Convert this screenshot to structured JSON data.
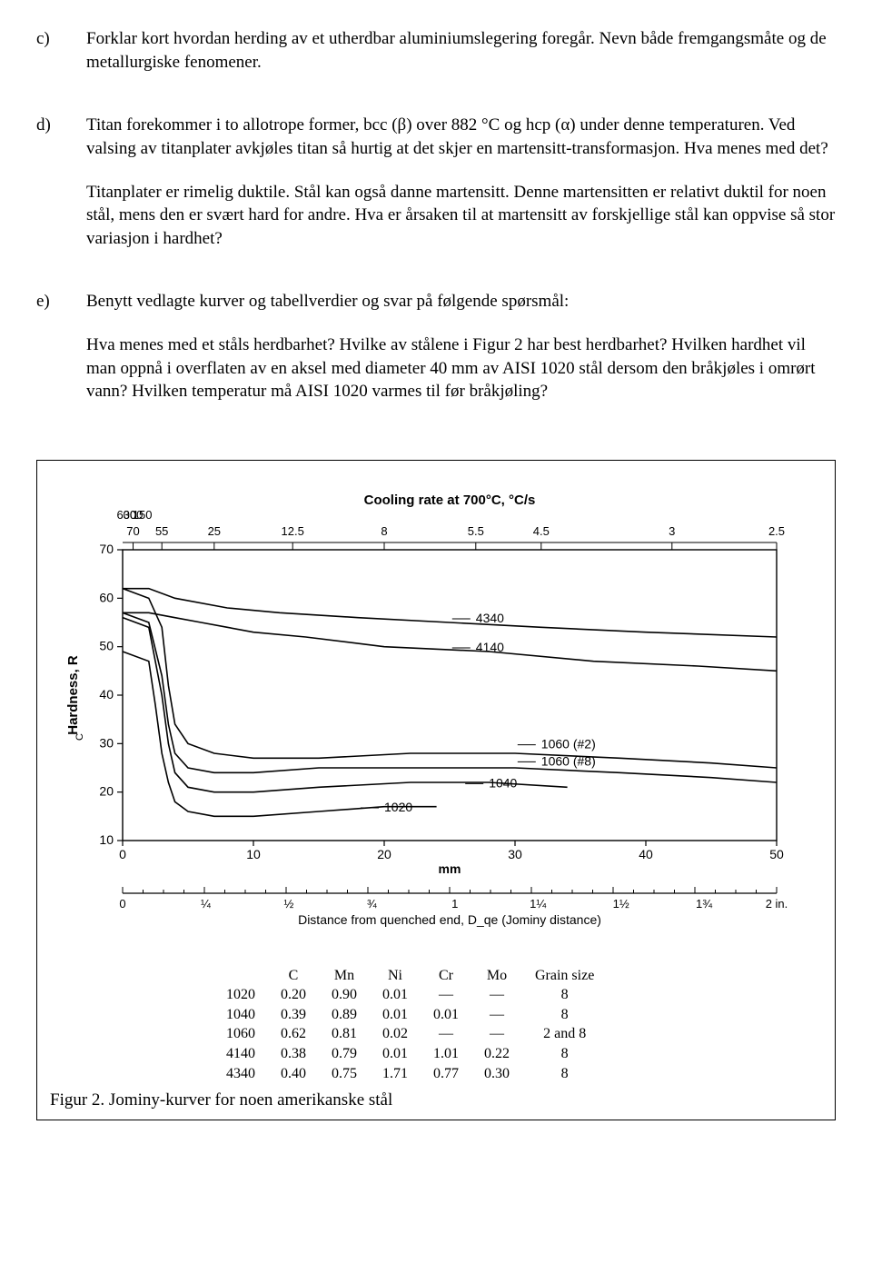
{
  "items": {
    "c": {
      "marker": "c)",
      "text": "Forklar kort hvordan herding av et utherdbar aluminiumslegering foregår. Nevn både fremgangsmåte og de metallurgiske fenomener."
    },
    "d": {
      "marker": "d)",
      "p1": "Titan forekommer i to allotrope former, bcc (β) over 882 °C og hcp (α) under denne temperaturen. Ved valsing av titanplater avkjøles titan så hurtig at det skjer en martensitt-transformasjon. Hva menes med det?",
      "p2": "Titanplater er rimelig duktile. Stål kan også danne martensitt. Denne martensitten er relativt duktil for noen stål, mens den er svært hard for andre. Hva er årsaken til at martensitt av forskjellige stål kan oppvise så stor variasjon i hardhet?"
    },
    "e": {
      "marker": "e)",
      "p1": "Benytt vedlagte kurver og tabellverdier og svar på følgende spørsmål:",
      "p2": "Hva menes med et ståls herdbarhet? Hvilke av stålene i Figur 2 har best herdbarhet? Hvilken hardhet vil man oppnå i overflaten av en aksel med diameter 40 mm av AISI 1020 stål dersom den bråkjøles i omrørt vann? Hvilken temperatur må AISI 1020 varmes til før bråkjøling?"
    }
  },
  "figure": {
    "caption": "Figur 2. Jominy-kurver for noen amerikanske stål",
    "chart": {
      "type": "line",
      "title_top": "Cooling rate at 700°C, °C/s",
      "cooling_rate_labels": [
        "600",
        "300",
        "150",
        "70",
        "55",
        "25",
        "12.5",
        "8",
        "5.5",
        "4.5",
        "3",
        "2.5"
      ],
      "cooling_rate_x": [
        0.3,
        0.8,
        1.5,
        0.8,
        3.0,
        7.0,
        13.0,
        20.0,
        27.0,
        32.0,
        42.0,
        50.0
      ],
      "cooling_rate_row": [
        0,
        0,
        0,
        1,
        1,
        1,
        1,
        1,
        1,
        1,
        1,
        1
      ],
      "x_axis_mm": {
        "label": "mm",
        "min": 0,
        "max": 50,
        "ticks": [
          0,
          10,
          20,
          30,
          40,
          50
        ]
      },
      "y_axis": {
        "label": "Hardness, R_C",
        "min": 10,
        "max": 70,
        "ticks": [
          10,
          20,
          30,
          40,
          50,
          60,
          70
        ]
      },
      "second_x_axis": {
        "label": "Distance from quenched end, D_qe (Jominy distance)",
        "ticks": [
          {
            "v": 0,
            "t": "0"
          },
          {
            "v": 6.35,
            "t": "¼"
          },
          {
            "v": 12.7,
            "t": "½"
          },
          {
            "v": 19.05,
            "t": "¾"
          },
          {
            "v": 25.4,
            "t": "1"
          },
          {
            "v": 31.75,
            "t": "1¼"
          },
          {
            "v": 38.1,
            "t": "1½"
          },
          {
            "v": 44.45,
            "t": "1¾"
          },
          {
            "v": 50,
            "t": "2 in."
          }
        ]
      },
      "line_color": "#000000",
      "axis_color": "#000000",
      "background_color": "#ffffff",
      "line_width": 1.6,
      "series": [
        {
          "name": "4340",
          "data": [
            [
              0,
              62
            ],
            [
              2,
              62
            ],
            [
              4,
              60
            ],
            [
              8,
              58
            ],
            [
              12,
              57
            ],
            [
              18,
              56
            ],
            [
              25,
              55
            ],
            [
              32,
              54
            ],
            [
              40,
              53
            ],
            [
              50,
              52
            ]
          ]
        },
        {
          "name": "4140",
          "data": [
            [
              0,
              57
            ],
            [
              2,
              57
            ],
            [
              4,
              56
            ],
            [
              6,
              55
            ],
            [
              8,
              54
            ],
            [
              10,
              53
            ],
            [
              14,
              52
            ],
            [
              20,
              50
            ],
            [
              28,
              49
            ],
            [
              36,
              47
            ],
            [
              44,
              46
            ],
            [
              50,
              45
            ]
          ]
        },
        {
          "name": "1060#2",
          "data": [
            [
              0,
              62
            ],
            [
              2,
              60
            ],
            [
              3,
              54
            ],
            [
              3.5,
              42
            ],
            [
              4,
              34
            ],
            [
              5,
              30
            ],
            [
              7,
              28
            ],
            [
              10,
              27
            ],
            [
              15,
              27
            ],
            [
              22,
              28
            ],
            [
              30,
              28
            ],
            [
              38,
              27
            ],
            [
              45,
              26
            ],
            [
              50,
              25
            ]
          ]
        },
        {
          "name": "1060#8",
          "data": [
            [
              0,
              57
            ],
            [
              2,
              55
            ],
            [
              3,
              44
            ],
            [
              3.5,
              34
            ],
            [
              4,
              28
            ],
            [
              5,
              25
            ],
            [
              7,
              24
            ],
            [
              10,
              24
            ],
            [
              15,
              25
            ],
            [
              22,
              25
            ],
            [
              30,
              25
            ],
            [
              38,
              24
            ],
            [
              45,
              23
            ],
            [
              50,
              22
            ]
          ]
        },
        {
          "name": "1040",
          "data": [
            [
              0,
              56
            ],
            [
              2,
              54
            ],
            [
              3,
              40
            ],
            [
              3.5,
              30
            ],
            [
              4,
              24
            ],
            [
              5,
              21
            ],
            [
              7,
              20
            ],
            [
              10,
              20
            ],
            [
              15,
              21
            ],
            [
              22,
              22
            ],
            [
              28,
              22
            ],
            [
              34,
              21
            ]
          ]
        },
        {
          "name": "1020",
          "data": [
            [
              0,
              49
            ],
            [
              2,
              47
            ],
            [
              2.5,
              38
            ],
            [
              3,
              28
            ],
            [
              3.5,
              22
            ],
            [
              4,
              18
            ],
            [
              5,
              16
            ],
            [
              7,
              15
            ],
            [
              10,
              15
            ],
            [
              15,
              16
            ],
            [
              20,
              17
            ],
            [
              24,
              17
            ]
          ]
        }
      ],
      "curve_labels": [
        {
          "text": "4340",
          "x": 27,
          "y": 55
        },
        {
          "text": "4140",
          "x": 27,
          "y": 49
        },
        {
          "text": "1060 (#2)",
          "x": 32,
          "y": 29
        },
        {
          "text": "1060 (#8)",
          "x": 32,
          "y": 25.5
        },
        {
          "text": "1040",
          "x": 28,
          "y": 21
        },
        {
          "text": "1020",
          "x": 20,
          "y": 16
        }
      ]
    },
    "table": {
      "columns": [
        "",
        "C",
        "Mn",
        "Ni",
        "Cr",
        "Mo",
        "Grain size"
      ],
      "rows": [
        [
          "1020",
          "0.20",
          "0.90",
          "0.01",
          "—",
          "—",
          "8"
        ],
        [
          "1040",
          "0.39",
          "0.89",
          "0.01",
          "0.01",
          "—",
          "8"
        ],
        [
          "1060",
          "0.62",
          "0.81",
          "0.02",
          "—",
          "—",
          "2 and 8"
        ],
        [
          "4140",
          "0.38",
          "0.79",
          "0.01",
          "1.01",
          "0.22",
          "8"
        ],
        [
          "4340",
          "0.40",
          "0.75",
          "1.71",
          "0.77",
          "0.30",
          "8"
        ]
      ]
    }
  }
}
